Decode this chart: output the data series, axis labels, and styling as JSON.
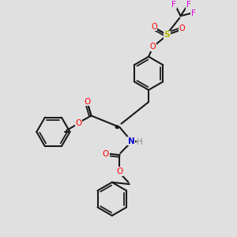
{
  "bg_color": "#e0e0e0",
  "bond_color": "#1a1a1a",
  "bond_width": 1.5,
  "colors": {
    "O": "#ff0000",
    "N": "#0000cc",
    "S": "#b8b800",
    "F": "#dd00dd",
    "C": "#1a1a1a",
    "H": "#888888"
  },
  "figsize": [
    3.0,
    3.0
  ],
  "dpi": 100
}
